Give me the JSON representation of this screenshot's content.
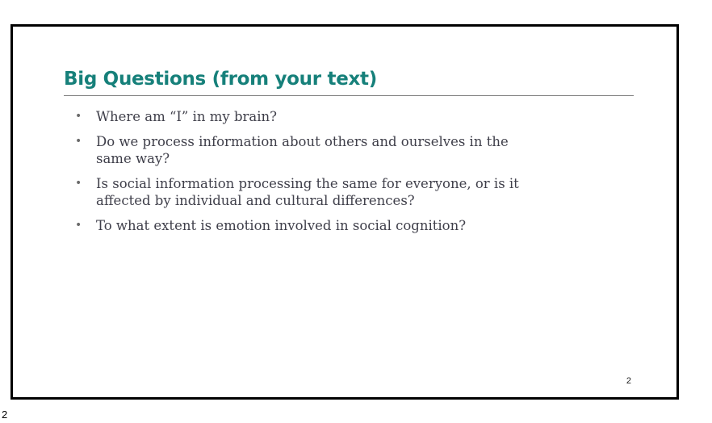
{
  "slide": {
    "title": "Big Questions (from your text)",
    "title_color": "#16807a",
    "bullets": [
      "Where am “I” in my brain?",
      "Do we process information about others and ourselves in the same way?",
      "Is social information processing the same for everyone, or is it affected by individual and cultural differences?",
      "To what extent is emotion involved in social cognition?"
    ],
    "bullet_marker": "•",
    "slide_number": "2"
  },
  "page": {
    "number": "2"
  }
}
